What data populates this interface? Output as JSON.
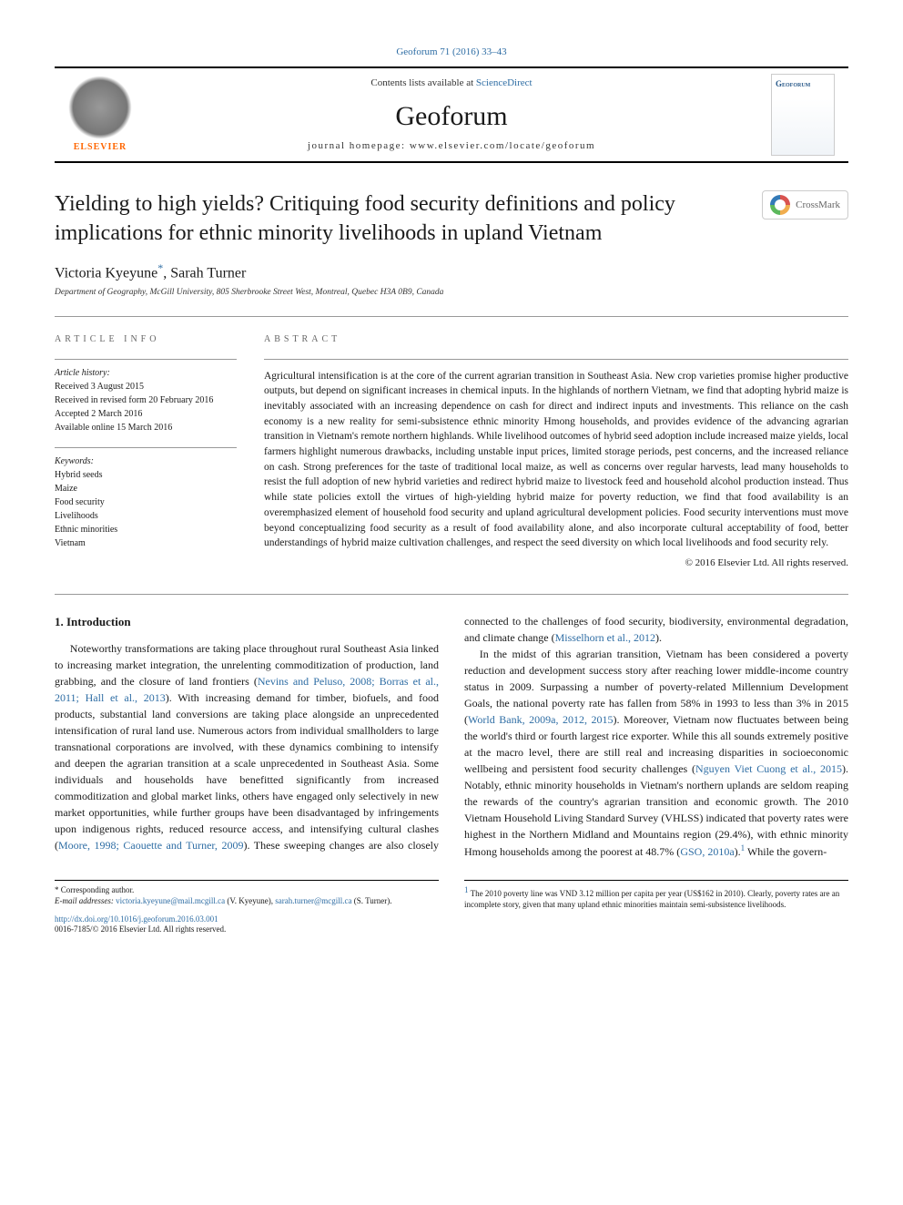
{
  "citation": "Geoforum 71 (2016) 33–43",
  "header": {
    "contents_prefix": "Contents lists available at ",
    "contents_link": "ScienceDirect",
    "journal": "Geoforum",
    "homepage_label": "journal homepage: ",
    "homepage_url": "www.elsevier.com/locate/geoforum",
    "publisher_name": "ELSEVIER",
    "cover_title": "Geoforum"
  },
  "crossmark": "CrossMark",
  "title": "Yielding to high yields? Critiquing food security definitions and policy implications for ethnic minority livelihoods in upland Vietnam",
  "authors": "Victoria Kyeyune",
  "author2": ", Sarah Turner",
  "corr_marker": "*",
  "affiliation": "Department of Geography, McGill University, 805 Sherbrooke Street West, Montreal, Quebec H3A 0B9, Canada",
  "info_label": "article info",
  "abstract_label": "abstract",
  "history": {
    "heading": "Article history:",
    "received": "Received 3 August 2015",
    "revised": "Received in revised form 20 February 2016",
    "accepted": "Accepted 2 March 2016",
    "online": "Available online 15 March 2016"
  },
  "keywords": {
    "heading": "Keywords:",
    "items": [
      "Hybrid seeds",
      "Maize",
      "Food security",
      "Livelihoods",
      "Ethnic minorities",
      "Vietnam"
    ]
  },
  "abstract": "Agricultural intensification is at the core of the current agrarian transition in Southeast Asia. New crop varieties promise higher productive outputs, but depend on significant increases in chemical inputs. In the highlands of northern Vietnam, we find that adopting hybrid maize is inevitably associated with an increasing dependence on cash for direct and indirect inputs and investments. This reliance on the cash economy is a new reality for semi-subsistence ethnic minority Hmong households, and provides evidence of the advancing agrarian transition in Vietnam's remote northern highlands. While livelihood outcomes of hybrid seed adoption include increased maize yields, local farmers highlight numerous drawbacks, including unstable input prices, limited storage periods, pest concerns, and the increased reliance on cash. Strong preferences for the taste of traditional local maize, as well as concerns over regular harvests, lead many households to resist the full adoption of new hybrid varieties and redirect hybrid maize to livestock feed and household alcohol production instead. Thus while state policies extoll the virtues of high-yielding hybrid maize for poverty reduction, we find that food availability is an overemphasized element of household food security and upland agricultural development policies. Food security interventions must move beyond conceptualizing food security as a result of food availability alone, and also incorporate cultural acceptability of food, better understandings of hybrid maize cultivation challenges, and respect the seed diversity on which local livelihoods and food security rely.",
  "copyright": "© 2016 Elsevier Ltd. All rights reserved.",
  "section1_heading": "1. Introduction",
  "para1a": "Noteworthy transformations are taking place throughout rural Southeast Asia linked to increasing market integration, the unrelenting commoditization of production, land grabbing, and the closure of land frontiers (",
  "para1_cite1": "Nevins and Peluso, 2008; Borras et al., 2011; Hall et al., 2013",
  "para1b": "). With increasing demand for timber, biofuels, and food products, substantial land conversions are taking place alongside an unprecedented intensification of rural land use. Numerous actors from individual smallholders to large transnational corporations are involved, with these dynamics combining to intensify and deepen the agrarian transition at a scale unprecedented in Southeast Asia. Some individuals and households have benefitted significantly from increased commoditization and global market links, others have engaged only selectively in new market opportunities, while further groups have been disadvantaged by infringements upon indigenous rights, reduced resource access, and intensifying cultural clashes (",
  "para1_cite2": "Moore, 1998; Caouette and Turner, 2009",
  "para1c": "). These sweeping changes are also closely connected to the challenges of food security, biodiversity, environmental degradation, and climate change (",
  "para1_cite3": "Misselhorn et al., 2012",
  "para1d": ").",
  "para2a": "In the midst of this agrarian transition, Vietnam has been considered a poverty reduction and development success story after reaching lower middle-income country status in 2009. Surpassing a number of poverty-related Millennium Development Goals, the national poverty rate has fallen from 58% in 1993 to less than 3% in 2015 (",
  "para2_cite1": "World Bank, 2009a, 2012, 2015",
  "para2b": "). Moreover, Vietnam now fluctuates between being the world's third or fourth largest rice exporter. While this all sounds extremely positive at the macro level, there are still real and increasing disparities in socioeconomic wellbeing and persistent food security challenges (",
  "para2_cite2": "Nguyen Viet Cuong et al., 2015",
  "para2c": "). Notably, ethnic minority households in Vietnam's northern uplands are seldom reaping the rewards of the country's agrarian transition and economic growth. The 2010 Vietnam Household Living Standard Survey (VHLSS) indicated that poverty rates were highest in the Northern Midland and Mountains region (29.4%), with ethnic minority Hmong households among the poorest at 48.7% (",
  "para2_cite3": "GSO, 2010a",
  "para2d": ").",
  "para2_fn": "1",
  "para2e": " While the govern-",
  "footnote_left": {
    "corr_label": "* Corresponding author.",
    "email_label": "E-mail addresses: ",
    "email1": "victoria.kyeyune@mail.mcgill.ca",
    "email1_who": " (V. Kyeyune), ",
    "email2": "sarah.turner@mcgill.ca",
    "email2_who": " (S. Turner)."
  },
  "footnote_right": {
    "marker": "1",
    "text": " The 2010 poverty line was VND 3.12 million per capita per year (US$162 in 2010). Clearly, poverty rates are an incomplete story, given that many upland ethnic minorities maintain semi-subsistence livelihoods."
  },
  "doi": "http://dx.doi.org/10.1016/j.geoforum.2016.03.001",
  "issn_line": "0016-7185/© 2016 Elsevier Ltd. All rights reserved.",
  "colors": {
    "link": "#2e6da4",
    "text": "#1a1a1a",
    "rule": "#999999",
    "elsevier": "#ff6600"
  }
}
